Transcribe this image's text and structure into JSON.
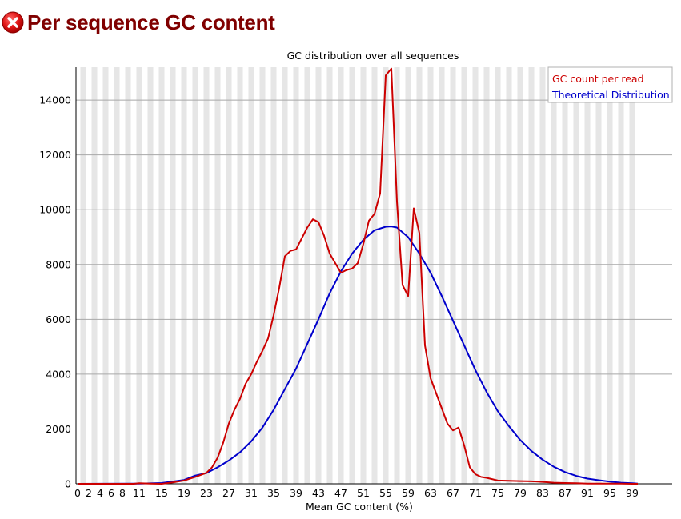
{
  "header": {
    "title": "Per sequence GC content",
    "status_icon": "error-icon",
    "status_color": "#cc0000"
  },
  "chart_data": {
    "type": "line",
    "title": "GC distribution over all sequences",
    "xlabel": "Mean GC content (%)",
    "ylabel": "",
    "xlim": [
      0,
      100
    ],
    "ylim": [
      0,
      15200
    ],
    "x_ticks": [
      "0",
      "2",
      "4",
      "6",
      "8",
      "11",
      "15",
      "19",
      "23",
      "27",
      "31",
      "35",
      "39",
      "43",
      "47",
      "51",
      "55",
      "59",
      "63",
      "67",
      "71",
      "75",
      "79",
      "83",
      "87",
      "91",
      "95",
      "99"
    ],
    "y_ticks": [
      0,
      2000,
      4000,
      6000,
      8000,
      10000,
      12000,
      14000
    ],
    "grid": true,
    "legend_position": "top-right",
    "series": [
      {
        "name": "GC count per read",
        "color": "#cc0000",
        "x": [
          0,
          10,
          11,
          13,
          15,
          17,
          19,
          21,
          23,
          24,
          25,
          26,
          27,
          28,
          29,
          30,
          31,
          32,
          33,
          34,
          35,
          36,
          37,
          38,
          39,
          40,
          41,
          42,
          43,
          44,
          45,
          46,
          47,
          48,
          49,
          50,
          51,
          52,
          53,
          54,
          55,
          56,
          57,
          58,
          59,
          60,
          61,
          62,
          63,
          64,
          65,
          66,
          67,
          68,
          69,
          70,
          71,
          72,
          73,
          75,
          77,
          79,
          81,
          83,
          85,
          87,
          89,
          91,
          93,
          95,
          97,
          99,
          100
        ],
        "y": [
          0,
          0,
          20,
          10,
          0,
          50,
          120,
          250,
          400,
          600,
          950,
          1500,
          2200,
          2700,
          3100,
          3650,
          4000,
          4450,
          4850,
          5300,
          6150,
          7150,
          8300,
          8500,
          8550,
          8950,
          9350,
          9650,
          9550,
          9050,
          8400,
          8050,
          7700,
          7800,
          7850,
          8050,
          8750,
          9600,
          9850,
          10600,
          14900,
          15150,
          10300,
          7250,
          6850,
          10050,
          9150,
          5050,
          3850,
          3300,
          2750,
          2200,
          1950,
          2050,
          1400,
          600,
          350,
          250,
          220,
          120,
          110,
          100,
          90,
          70,
          40,
          30,
          20,
          10,
          10,
          5,
          5,
          0,
          0
        ]
      },
      {
        "name": "Theoretical Distribution",
        "color": "#0000cc",
        "x": [
          0,
          11,
          15,
          19,
          21,
          23,
          25,
          27,
          29,
          31,
          33,
          35,
          37,
          39,
          41,
          43,
          45,
          47,
          49,
          51,
          53,
          55,
          56,
          57,
          59,
          61,
          63,
          65,
          67,
          69,
          71,
          73,
          75,
          77,
          79,
          81,
          83,
          85,
          87,
          89,
          91,
          93,
          95,
          97,
          99,
          100
        ],
        "y": [
          0,
          10,
          30,
          140,
          300,
          390,
          600,
          850,
          1150,
          1550,
          2050,
          2700,
          3450,
          4200,
          5100,
          6000,
          6950,
          7750,
          8400,
          8900,
          9250,
          9380,
          9390,
          9350,
          9000,
          8400,
          7700,
          6850,
          5950,
          5050,
          4150,
          3350,
          2650,
          2100,
          1600,
          1200,
          880,
          620,
          430,
          290,
          190,
          130,
          80,
          40,
          20,
          10
        ]
      }
    ]
  }
}
